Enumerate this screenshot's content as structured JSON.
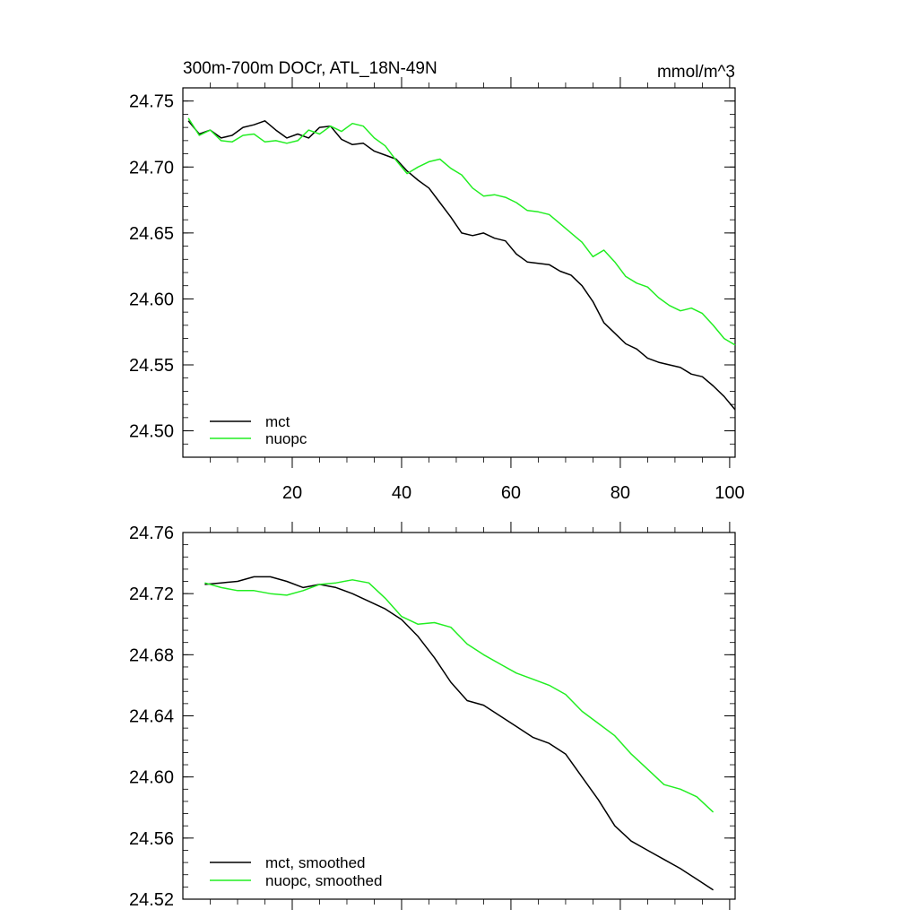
{
  "chart_data": [
    {
      "type": "line",
      "title": "300m-700m DOCr, ATL_18N-49N",
      "units": "mmol/m^3",
      "xlabel": "",
      "ylabel": "",
      "xlim": [
        0,
        101
      ],
      "ylim": [
        24.48,
        24.76
      ],
      "xticks": [
        20,
        40,
        60,
        80,
        100
      ],
      "yticks": [
        24.5,
        24.55,
        24.6,
        24.65,
        24.7,
        24.75
      ],
      "ytick_labels": [
        "24.50",
        "24.55",
        "24.60",
        "24.65",
        "24.70",
        "24.75"
      ],
      "legend": "bottom-left",
      "series": [
        {
          "name": "mct",
          "color": "#000000",
          "x": [
            1,
            3,
            5,
            7,
            9,
            11,
            13,
            15,
            17,
            19,
            21,
            23,
            25,
            27,
            29,
            31,
            33,
            35,
            37,
            39,
            41,
            43,
            45,
            47,
            49,
            51,
            53,
            55,
            57,
            59,
            61,
            63,
            65,
            67,
            69,
            71,
            73,
            75,
            77,
            79,
            81,
            83,
            85,
            87,
            89,
            91,
            93,
            95,
            97,
            99,
            101
          ],
          "y": [
            24.735,
            24.725,
            24.728,
            24.722,
            24.724,
            24.73,
            24.732,
            24.735,
            24.728,
            24.722,
            24.725,
            24.722,
            24.73,
            24.731,
            24.721,
            24.717,
            24.718,
            24.712,
            24.709,
            24.706,
            24.697,
            24.69,
            24.684,
            24.673,
            24.662,
            24.65,
            24.648,
            24.65,
            24.646,
            24.644,
            24.634,
            24.628,
            24.627,
            24.626,
            24.621,
            24.618,
            24.61,
            24.598,
            24.582,
            24.574,
            24.566,
            24.562,
            24.555,
            24.552,
            24.55,
            24.548,
            24.543,
            24.541,
            24.534,
            24.526,
            24.516
          ]
        },
        {
          "name": "nuopc",
          "color": "#22ee22",
          "x": [
            1,
            3,
            5,
            7,
            9,
            11,
            13,
            15,
            17,
            19,
            21,
            23,
            25,
            27,
            29,
            31,
            33,
            35,
            37,
            39,
            41,
            43,
            45,
            47,
            49,
            51,
            53,
            55,
            57,
            59,
            61,
            63,
            65,
            67,
            69,
            71,
            73,
            75,
            77,
            79,
            81,
            83,
            85,
            87,
            89,
            91,
            93,
            95,
            97,
            99,
            101
          ],
          "y": [
            24.737,
            24.724,
            24.728,
            24.72,
            24.719,
            24.724,
            24.725,
            24.719,
            24.72,
            24.718,
            24.72,
            24.728,
            24.725,
            24.731,
            24.727,
            24.733,
            24.731,
            24.722,
            24.716,
            24.705,
            24.695,
            24.7,
            24.704,
            24.706,
            24.699,
            24.694,
            24.684,
            24.678,
            24.679,
            24.677,
            24.673,
            24.667,
            24.666,
            24.664,
            24.657,
            24.65,
            24.643,
            24.632,
            24.637,
            24.628,
            24.617,
            24.612,
            24.609,
            24.601,
            24.595,
            24.591,
            24.593,
            24.589,
            24.58,
            24.57,
            24.565
          ]
        }
      ]
    },
    {
      "type": "line",
      "title": "",
      "xlabel": "",
      "ylabel": "",
      "xlim": [
        0,
        101
      ],
      "ylim": [
        24.52,
        24.76
      ],
      "xticks": [
        20,
        40,
        60,
        80,
        100
      ],
      "yticks": [
        24.52,
        24.56,
        24.6,
        24.64,
        24.68,
        24.72,
        24.76
      ],
      "ytick_labels": [
        "24.52",
        "24.56",
        "24.60",
        "24.64",
        "24.68",
        "24.72",
        "24.76"
      ],
      "legend": "bottom-left",
      "series": [
        {
          "name": "mct, smoothed",
          "color": "#000000",
          "x": [
            4,
            7,
            10,
            13,
            16,
            19,
            22,
            25,
            28,
            31,
            34,
            37,
            40,
            43,
            46,
            49,
            52,
            55,
            58,
            61,
            64,
            67,
            70,
            73,
            76,
            79,
            82,
            85,
            88,
            91,
            94,
            97
          ],
          "y": [
            24.726,
            24.727,
            24.728,
            24.731,
            24.731,
            24.728,
            24.724,
            24.726,
            24.724,
            24.72,
            24.715,
            24.71,
            24.703,
            24.692,
            24.678,
            24.662,
            24.65,
            24.647,
            24.64,
            24.633,
            24.626,
            24.622,
            24.615,
            24.6,
            24.585,
            24.568,
            24.558,
            24.552,
            24.546,
            24.54,
            24.533,
            24.526
          ]
        },
        {
          "name": "nuopc, smoothed",
          "color": "#22ee22",
          "x": [
            4,
            7,
            10,
            13,
            16,
            19,
            22,
            25,
            28,
            31,
            34,
            37,
            40,
            43,
            46,
            49,
            52,
            55,
            58,
            61,
            64,
            67,
            70,
            73,
            76,
            79,
            82,
            85,
            88,
            91,
            94,
            97
          ],
          "y": [
            24.727,
            24.724,
            24.722,
            24.722,
            24.72,
            24.719,
            24.722,
            24.726,
            24.727,
            24.729,
            24.727,
            24.717,
            24.705,
            24.7,
            24.701,
            24.698,
            24.687,
            24.68,
            24.674,
            24.668,
            24.664,
            24.66,
            24.654,
            24.643,
            24.635,
            24.627,
            24.615,
            24.605,
            24.595,
            24.592,
            24.587,
            24.577
          ]
        }
      ]
    }
  ]
}
